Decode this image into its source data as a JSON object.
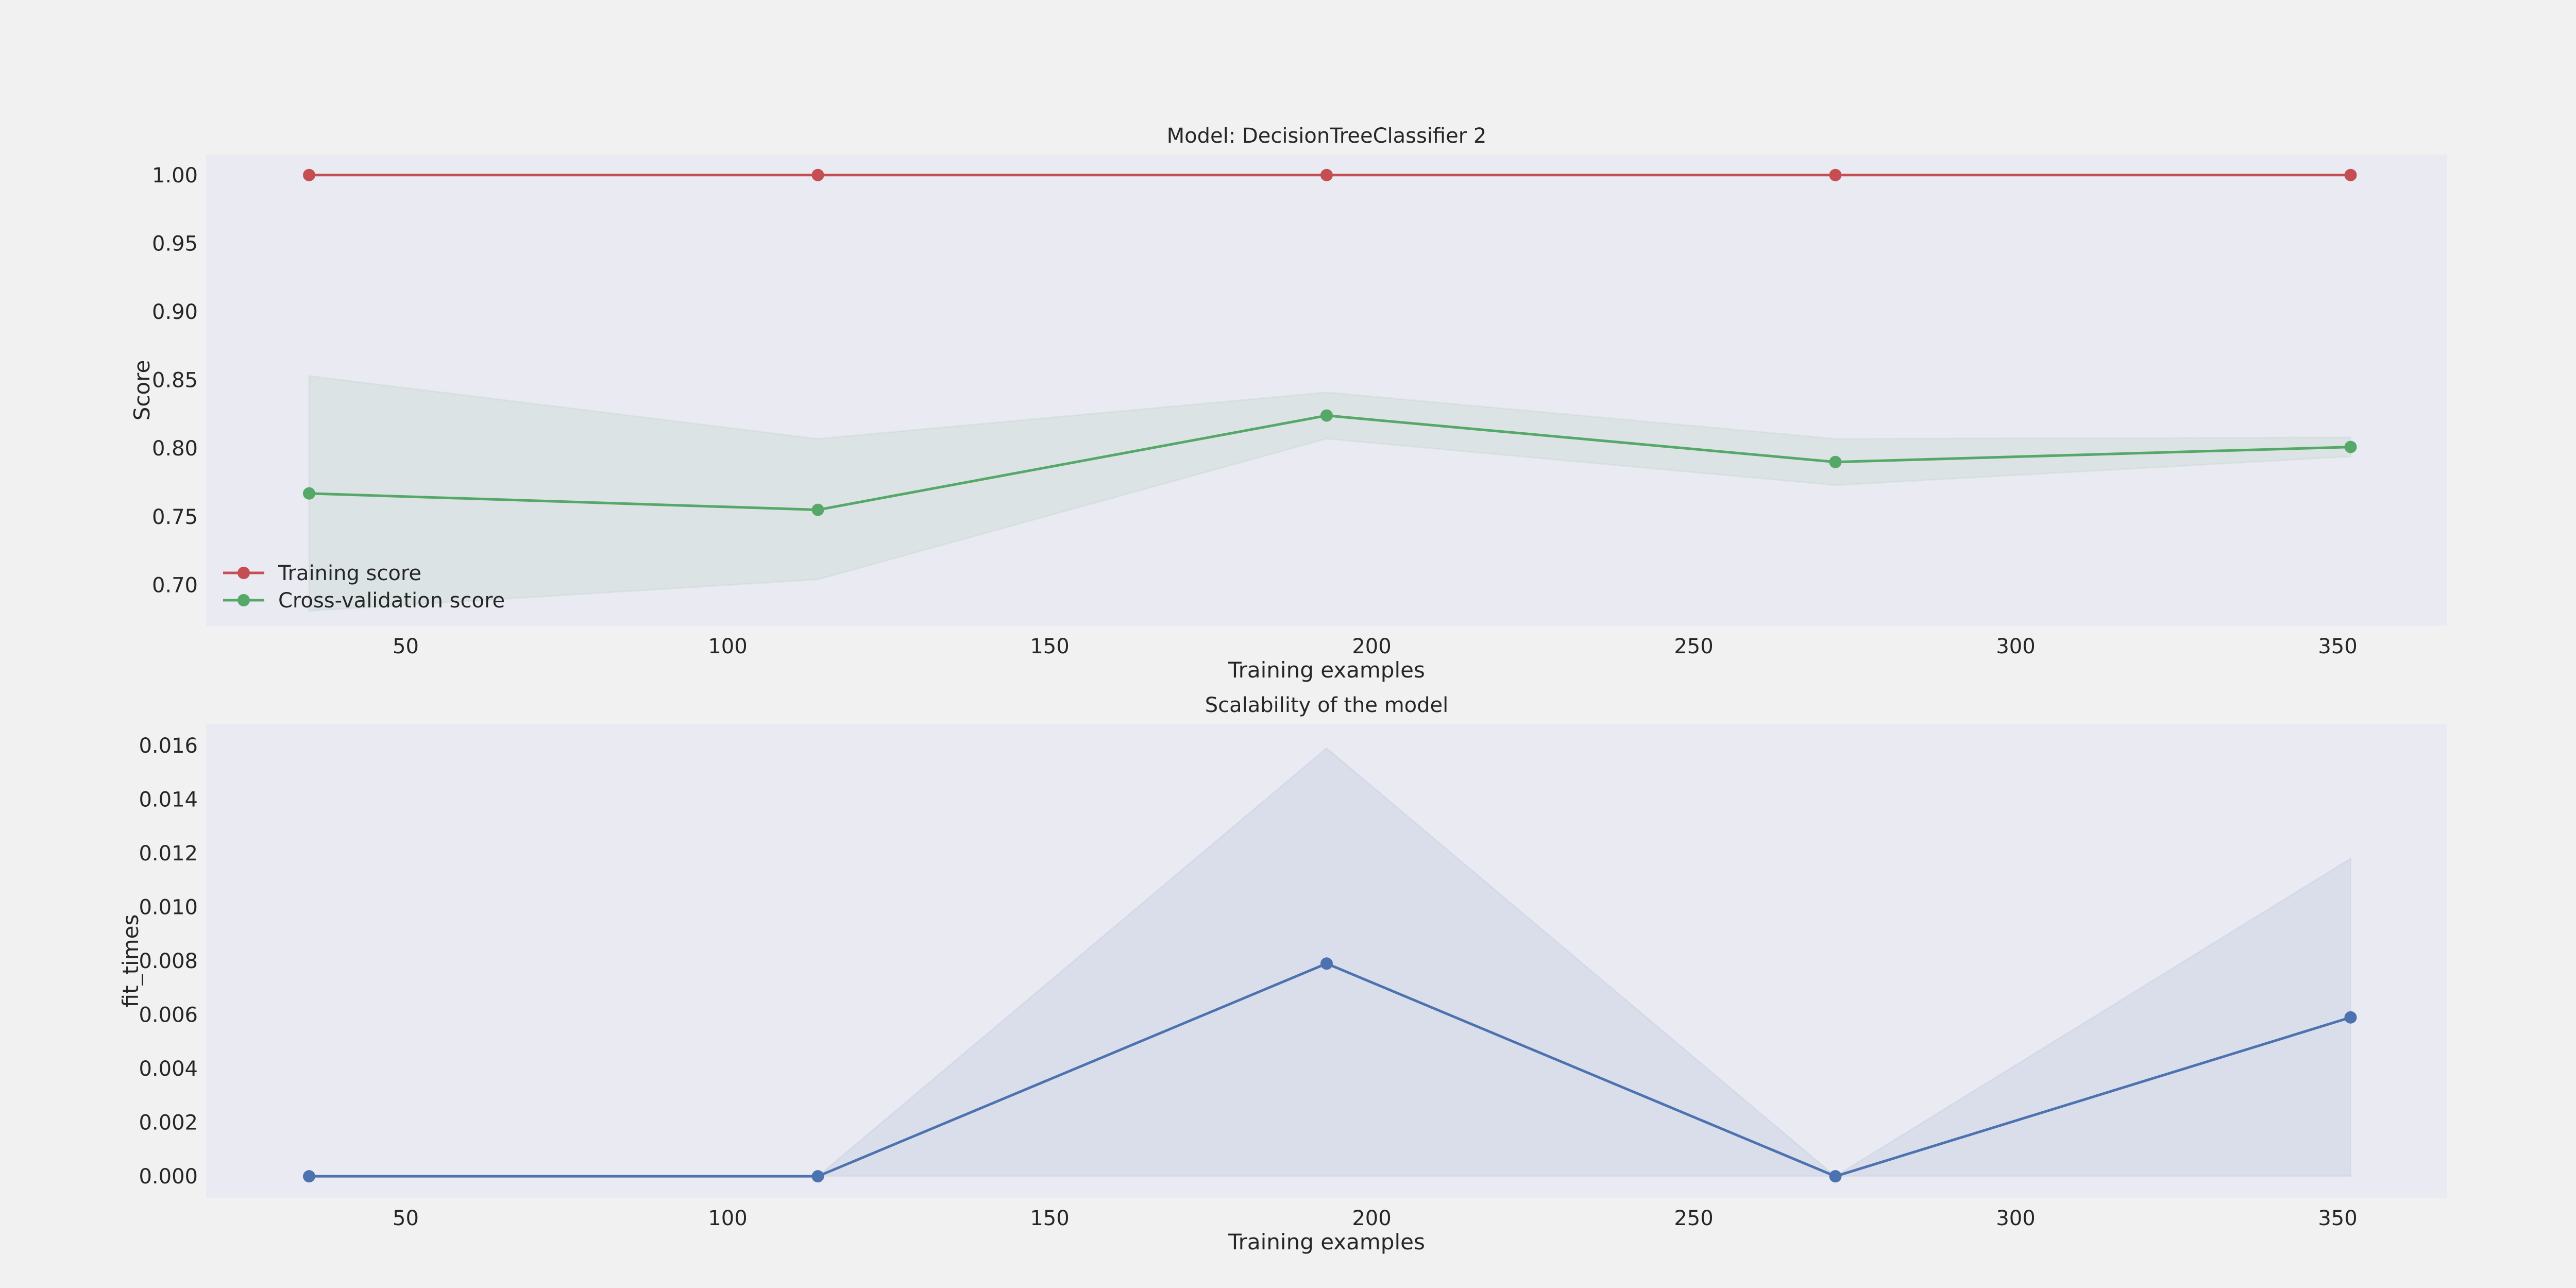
{
  "colors": {
    "figure_bg": "#f1f1f1",
    "axes_bg": "#eaeaf2",
    "training": "#c44e52",
    "cv": "#55a868",
    "fit": "#4c72b0",
    "text": "#262626"
  },
  "chart_data": [
    {
      "type": "line",
      "title": "Model: DecisionTreeClassifier 2",
      "xlabel": "Training examples",
      "ylabel": "Score",
      "xlim": [
        19,
        367
      ],
      "ylim": [
        0.67,
        1.015
      ],
      "xticks": [
        50,
        100,
        150,
        200,
        250,
        300,
        350
      ],
      "xtick_labels": [
        "50",
        "100",
        "150",
        "200",
        "250",
        "300",
        "350"
      ],
      "yticks": [
        0.7,
        0.75,
        0.8,
        0.85,
        0.9,
        0.95,
        1.0
      ],
      "ytick_labels": [
        "0.70",
        "0.75",
        "0.80",
        "0.85",
        "0.90",
        "0.95",
        "1.00"
      ],
      "grid": false,
      "legend": "lower-left",
      "x": [
        35,
        114,
        193,
        272,
        352
      ],
      "series": [
        {
          "name": "Training score",
          "color": "#c44e52",
          "values": [
            1.0,
            1.0,
            1.0,
            1.0,
            1.0
          ],
          "band_low": [
            1.0,
            1.0,
            1.0,
            1.0,
            1.0
          ],
          "band_high": [
            1.0,
            1.0,
            1.0,
            1.0,
            1.0
          ]
        },
        {
          "name": "Cross-validation score",
          "color": "#55a868",
          "values": [
            0.767,
            0.755,
            0.824,
            0.79,
            0.801
          ],
          "band_low": [
            0.681,
            0.704,
            0.807,
            0.773,
            0.794
          ],
          "band_high": [
            0.853,
            0.807,
            0.841,
            0.807,
            0.808
          ]
        }
      ]
    },
    {
      "type": "line",
      "title": "Scalability of the model",
      "xlabel": "Training examples",
      "ylabel": "fit_times",
      "xlim": [
        19,
        367
      ],
      "ylim": [
        -0.0008,
        0.0168
      ],
      "xticks": [
        50,
        100,
        150,
        200,
        250,
        300,
        350
      ],
      "xtick_labels": [
        "50",
        "100",
        "150",
        "200",
        "250",
        "300",
        "350"
      ],
      "yticks": [
        0.0,
        0.002,
        0.004,
        0.006,
        0.008,
        0.01,
        0.012,
        0.014,
        0.016
      ],
      "ytick_labels": [
        "0.000",
        "0.002",
        "0.004",
        "0.006",
        "0.008",
        "0.010",
        "0.012",
        "0.014",
        "0.016"
      ],
      "grid": false,
      "x": [
        35,
        114,
        193,
        272,
        352
      ],
      "series": [
        {
          "color": "#4c72b0",
          "values": [
            0.0,
            0.0,
            0.0079,
            0.0,
            0.0059
          ],
          "band_low": [
            0.0,
            0.0,
            0.0,
            0.0,
            0.0
          ],
          "band_high": [
            0.0,
            0.0,
            0.0159,
            0.0,
            0.0118
          ]
        }
      ]
    }
  ]
}
